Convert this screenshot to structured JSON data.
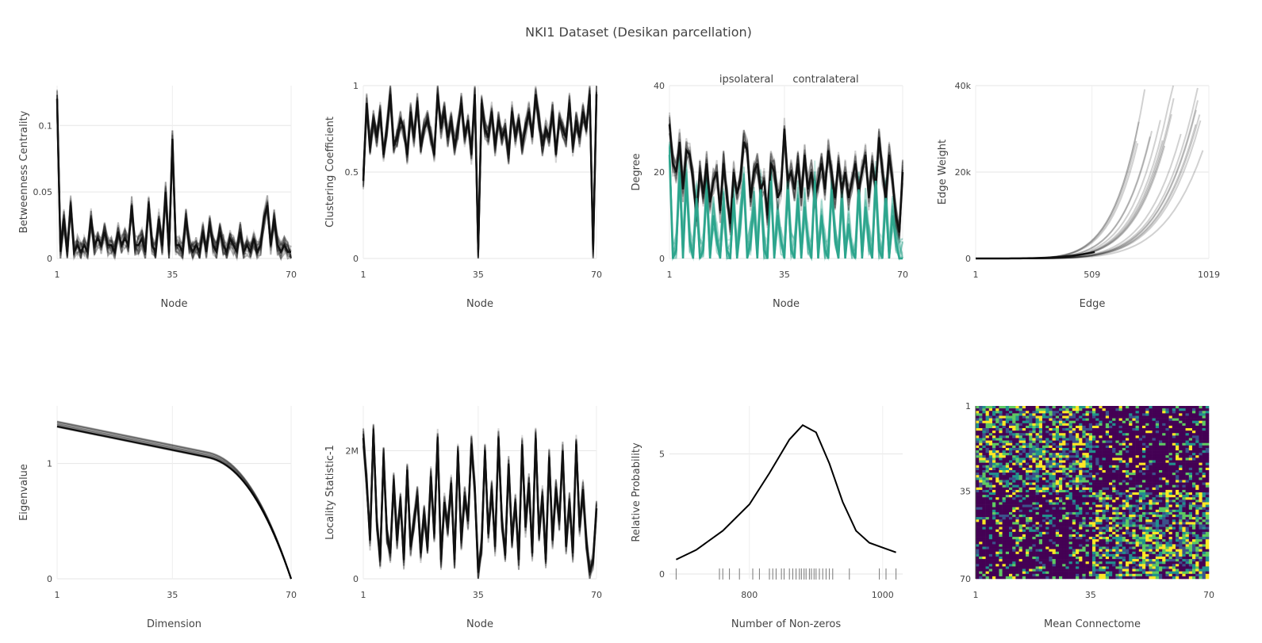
{
  "title": "NKI1 Dataset (Desikan parcellation)",
  "chart_data": [
    {
      "type": "line",
      "ylabel": "Betweenness Centrality",
      "xlabel": "Node",
      "x_ticks": [
        "1",
        "35",
        "70"
      ],
      "y_ticks": [
        "0",
        "0.05",
        "0.1"
      ],
      "xlim": [
        1,
        70
      ],
      "ylim": [
        0,
        0.13
      ],
      "grid": true,
      "n_traces": 20,
      "mean": [
        0.12,
        0.005,
        0.03,
        0.005,
        0.04,
        0.005,
        0.01,
        0.005,
        0.01,
        0.005,
        0.03,
        0.01,
        0.015,
        0.01,
        0.02,
        0.01,
        0.01,
        0.005,
        0.02,
        0.01,
        0.015,
        0.01,
        0.04,
        0.01,
        0.01,
        0.015,
        0.005,
        0.04,
        0.01,
        0.005,
        0.03,
        0.01,
        0.05,
        0.005,
        0.09,
        0.01,
        0.01,
        0.005,
        0.03,
        0.01,
        0.005,
        0.01,
        0.005,
        0.02,
        0.005,
        0.025,
        0.01,
        0.005,
        0.02,
        0.01,
        0.005,
        0.015,
        0.01,
        0.005,
        0.02,
        0.005,
        0.01,
        0.005,
        0.015,
        0.005,
        0.01,
        0.03,
        0.04,
        0.01,
        0.03,
        0.01,
        0.005,
        0.01,
        0.005,
        0.005
      ],
      "colors": [
        "#000000"
      ]
    },
    {
      "type": "line",
      "ylabel": "Clustering Coefficient",
      "xlabel": "Node",
      "x_ticks": [
        "1",
        "35",
        "70"
      ],
      "y_ticks": [
        "0",
        "0.5",
        "1"
      ],
      "xlim": [
        1,
        70
      ],
      "ylim": [
        0,
        1
      ],
      "grid": true,
      "n_traces": 20,
      "mean": [
        0.45,
        0.9,
        0.65,
        0.8,
        0.7,
        0.85,
        0.6,
        0.75,
        0.95,
        0.65,
        0.7,
        0.8,
        0.75,
        0.6,
        0.85,
        0.7,
        0.9,
        0.65,
        0.75,
        0.8,
        0.7,
        0.6,
        0.95,
        0.75,
        0.85,
        0.7,
        0.8,
        0.65,
        0.75,
        0.9,
        0.7,
        0.8,
        0.6,
        0.95,
        0.05,
        0.9,
        0.75,
        0.7,
        0.85,
        0.65,
        0.8,
        0.7,
        0.75,
        0.6,
        0.85,
        0.7,
        0.8,
        0.65,
        0.75,
        0.85,
        0.7,
        0.95,
        0.8,
        0.65,
        0.75,
        0.7,
        0.85,
        0.6,
        0.8,
        0.75,
        0.7,
        0.9,
        0.65,
        0.8,
        0.7,
        0.85,
        0.75,
        0.95,
        0.05,
        0.95
      ],
      "colors": [
        "#000000"
      ]
    },
    {
      "type": "line",
      "ylabel": "Degree",
      "xlabel": "Node",
      "x_ticks": [
        "1",
        "35",
        "70"
      ],
      "y_ticks": [
        "0",
        "20",
        "40"
      ],
      "xlim": [
        1,
        70
      ],
      "ylim": [
        0,
        40
      ],
      "grid": true,
      "legend": [
        "ipsolateral",
        "contralateral"
      ],
      "legend_position": "top",
      "n_traces": 15,
      "ipsolateral": [
        31,
        22,
        20,
        27,
        16,
        25,
        24,
        18,
        10,
        20,
        15,
        22,
        13,
        18,
        20,
        11,
        22,
        14,
        8,
        20,
        15,
        18,
        27,
        25,
        14,
        20,
        22,
        16,
        18,
        10,
        22,
        20,
        14,
        16,
        30,
        18,
        20,
        16,
        22,
        14,
        24,
        16,
        20,
        14,
        18,
        22,
        16,
        25,
        20,
        14,
        22,
        16,
        20,
        14,
        18,
        22,
        16,
        20,
        24,
        14,
        22,
        16,
        28,
        20,
        14,
        24,
        18,
        10,
        6,
        20
      ],
      "contralateral": [
        24,
        0,
        2,
        20,
        0,
        18,
        4,
        0,
        14,
        0,
        2,
        16,
        0,
        10,
        4,
        0,
        12,
        2,
        0,
        14,
        0,
        8,
        18,
        0,
        4,
        12,
        0,
        16,
        2,
        0,
        18,
        0,
        10,
        4,
        0,
        16,
        2,
        0,
        14,
        0,
        12,
        4,
        0,
        18,
        0,
        10,
        2,
        0,
        16,
        4,
        0,
        14,
        0,
        8,
        2,
        0,
        16,
        0,
        12,
        4,
        0,
        18,
        2,
        0,
        14,
        0,
        10,
        4,
        0,
        0
      ],
      "colors": [
        "#000000",
        "#2ca58d"
      ]
    },
    {
      "type": "line",
      "ylabel": "Edge Weight",
      "xlabel": "Edge",
      "x_ticks": [
        "1",
        "509",
        "1019"
      ],
      "y_ticks": [
        "0",
        "20k",
        "40k"
      ],
      "xlim": [
        1,
        1019
      ],
      "ylim": [
        0,
        40000
      ],
      "grid": true,
      "n_traces": 20,
      "colors": [
        "#000000"
      ]
    },
    {
      "type": "line",
      "ylabel": "Eigenvalue",
      "xlabel": "Dimension",
      "x_ticks": [
        "1",
        "35",
        "70"
      ],
      "y_ticks": [
        "0",
        "1"
      ],
      "xlim": [
        1,
        70
      ],
      "ylim": [
        0,
        1.5
      ],
      "grid": true,
      "n_traces": 20,
      "colors": [
        "#000000"
      ]
    },
    {
      "type": "line",
      "ylabel": "Locality Statistic-1",
      "xlabel": "Node",
      "x_ticks": [
        "1",
        "35",
        "70"
      ],
      "y_ticks": [
        "0",
        "2M"
      ],
      "xlim": [
        1,
        70
      ],
      "ylim": [
        0,
        2700000
      ],
      "grid": true,
      "n_traces": 20,
      "mean": [
        2200000,
        1500000,
        600000,
        2300000,
        900000,
        300000,
        1900000,
        700000,
        400000,
        1500000,
        600000,
        1200000,
        300000,
        1700000,
        500000,
        900000,
        1300000,
        400000,
        1000000,
        500000,
        1600000,
        700000,
        2200000,
        300000,
        1200000,
        800000,
        1500000,
        300000,
        2000000,
        600000,
        1300000,
        900000,
        2100000,
        1400000,
        100000,
        500000,
        2000000,
        700000,
        1400000,
        500000,
        2200000,
        900000,
        400000,
        1800000,
        600000,
        1200000,
        300000,
        2100000,
        800000,
        1500000,
        400000,
        2200000,
        700000,
        1300000,
        300000,
        1900000,
        600000,
        1400000,
        900000,
        2000000,
        500000,
        1200000,
        400000,
        2100000,
        800000,
        1400000,
        600000,
        100000,
        300000,
        1100000
      ],
      "colors": [
        "#000000"
      ]
    },
    {
      "type": "area",
      "ylabel": "Relative Probability",
      "xlabel": "Number of Non-zeros",
      "x_ticks": [
        "800",
        "1000"
      ],
      "y_ticks": [
        "0",
        "5"
      ],
      "xlim": [
        680,
        1030
      ],
      "ylim": [
        -0.2,
        7
      ],
      "grid": true,
      "density": {
        "x": [
          690,
          720,
          760,
          800,
          830,
          860,
          880,
          900,
          920,
          940,
          960,
          980,
          1000,
          1020
        ],
        "y": [
          0.6,
          1.0,
          1.8,
          2.9,
          4.2,
          5.6,
          6.2,
          5.9,
          4.6,
          3.0,
          1.8,
          1.3,
          1.1,
          0.9
        ]
      },
      "rug": [
        690,
        755,
        760,
        770,
        785,
        805,
        815,
        830,
        835,
        840,
        848,
        852,
        860,
        865,
        870,
        875,
        878,
        882,
        885,
        890,
        893,
        897,
        900,
        905,
        910,
        915,
        920,
        925,
        950,
        995,
        1005,
        1020
      ],
      "colors": [
        "#000000"
      ]
    },
    {
      "type": "heatmap",
      "xlabel": "Mean Connectome",
      "x_ticks": [
        "1",
        "35",
        "70"
      ],
      "y_ticks": [
        "1",
        "35",
        "70"
      ],
      "xlim": [
        1,
        70
      ],
      "ylim": [
        1,
        70
      ],
      "size": 70,
      "colorscale": [
        "#440154",
        "#3b528b",
        "#21918c",
        "#5ec962",
        "#fde725"
      ]
    }
  ]
}
